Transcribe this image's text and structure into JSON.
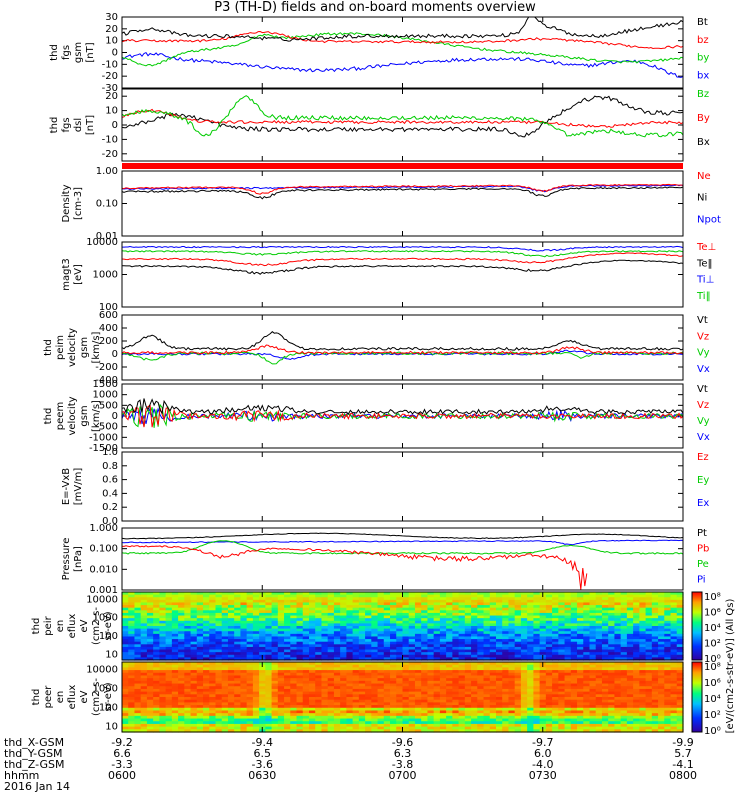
{
  "title": "P3 (TH-D) fields and on-board moments overview",
  "date": "2016 Jan 14",
  "colorbar_label": "[eV/(cm2-s-str-eV)] (All Qs)",
  "colorbar_ticks": [
    "10⁸",
    "10⁶",
    "10⁴",
    "10²",
    "10⁰"
  ],
  "ephemeris": {
    "labels": [
      "thd_X-GSM",
      "thd_Y-GSM",
      "thd_Z-GSM",
      "hhmm"
    ],
    "columns": [
      [
        "-9.2",
        "6.6",
        "-3.3",
        "0600"
      ],
      [
        "-9.4",
        "6.5",
        "-3.6",
        "0630"
      ],
      [
        "-9.6",
        "6.3",
        "-3.8",
        "0700"
      ],
      [
        "-9.7",
        "6.0",
        "-4.0",
        "0730"
      ],
      [
        "-9.9",
        "5.7",
        "-4.1",
        "0800"
      ]
    ]
  },
  "chart_data": [
    {
      "type": "line",
      "ylabel": [
        "thd",
        "fgs",
        "gsm",
        "[nT]"
      ],
      "ylim": [
        -30,
        30
      ],
      "yticks": [
        "30",
        "20",
        "10",
        "0",
        "-10",
        "-20",
        "-30"
      ],
      "series": [
        {
          "name": "Bt",
          "color": "#000000"
        },
        {
          "name": "bz",
          "color": "#ff0000"
        },
        {
          "name": "by",
          "color": "#00cc00"
        },
        {
          "name": "bx",
          "color": "#0000ff"
        }
      ]
    },
    {
      "type": "line",
      "ylabel": [
        "thd",
        "fgs",
        "dsl",
        "[nT]"
      ],
      "ylim": [
        -25,
        25
      ],
      "yticks": [
        "20",
        "10",
        "0",
        "-10",
        "-20"
      ],
      "series": [
        {
          "name": "Bz",
          "color": "#00cc00"
        },
        {
          "name": "By",
          "color": "#ff0000"
        },
        {
          "name": "Bx",
          "color": "#000000"
        }
      ]
    },
    {
      "type": "line",
      "ylabel": [
        "Density",
        "[cm-3]"
      ],
      "ylim": [
        0.01,
        1.0
      ],
      "log": true,
      "yticks": [
        "1.00",
        "0.10",
        "0.01"
      ],
      "series": [
        {
          "name": "Ne",
          "color": "#ff0000"
        },
        {
          "name": "Ni",
          "color": "#000000"
        },
        {
          "name": "Npot",
          "color": "#0000ff"
        }
      ]
    },
    {
      "type": "line",
      "ylabel": [
        "magt3",
        "[eV]"
      ],
      "ylim": [
        100,
        10000
      ],
      "log": true,
      "yticks": [
        "10000",
        "1000",
        "100"
      ],
      "series": [
        {
          "name": "Te⊥",
          "color": "#ff0000"
        },
        {
          "name": "Te‖",
          "color": "#000000"
        },
        {
          "name": "Ti⊥",
          "color": "#0000ff"
        },
        {
          "name": "Ti‖",
          "color": "#00cc00"
        }
      ]
    },
    {
      "type": "line",
      "ylabel": [
        "thd",
        "peim",
        "velocity",
        "gsm",
        "[km/s]"
      ],
      "ylim": [
        -400,
        600
      ],
      "yticks": [
        "600",
        "400",
        "200",
        "0",
        "-200",
        "-400"
      ],
      "series": [
        {
          "name": "Vt",
          "color": "#000000"
        },
        {
          "name": "Vz",
          "color": "#ff0000"
        },
        {
          "name": "Vy",
          "color": "#00cc00"
        },
        {
          "name": "Vx",
          "color": "#0000ff"
        }
      ]
    },
    {
      "type": "line",
      "ylabel": [
        "thd",
        "peem",
        "velocity",
        "gsm",
        "[km/s]"
      ],
      "ylim": [
        -1500,
        1500
      ],
      "yticks": [
        "1500",
        "1000",
        "500",
        "0",
        "-500",
        "-1000",
        "-1500"
      ],
      "series": [
        {
          "name": "Vt",
          "color": "#000000"
        },
        {
          "name": "Vz",
          "color": "#ff0000"
        },
        {
          "name": "Vy",
          "color": "#00cc00"
        },
        {
          "name": "Vx",
          "color": "#0000ff"
        }
      ]
    },
    {
      "type": "line",
      "ylabel": [
        "E=-VxB",
        "[mV/m]"
      ],
      "ylim": [
        0,
        1
      ],
      "yticks": [
        "1.0",
        "0.8",
        "0.6",
        "0.4",
        "0.2",
        "0.0"
      ],
      "series": [
        {
          "name": "Ez",
          "color": "#ff0000"
        },
        {
          "name": "Ey",
          "color": "#00cc00"
        },
        {
          "name": "Ex",
          "color": "#0000ff"
        }
      ]
    },
    {
      "type": "line",
      "ylabel": [
        "Pressure",
        "[nPa]"
      ],
      "ylim": [
        0.001,
        1.0
      ],
      "log": true,
      "yticks": [
        "1.000",
        "0.100",
        "0.010",
        "0.001"
      ],
      "series": [
        {
          "name": "Pt",
          "color": "#000000"
        },
        {
          "name": "Pb",
          "color": "#ff0000"
        },
        {
          "name": "Pe",
          "color": "#00cc00"
        },
        {
          "name": "Pi",
          "color": "#0000ff"
        }
      ]
    },
    {
      "type": "heatmap",
      "ylabel": [
        "thd",
        "peir",
        "en",
        "eflux",
        "eV",
        "(cm2-s-",
        "sr-eV)"
      ],
      "ylim": [
        5,
        25000
      ],
      "log": true,
      "yticks": [
        "10000",
        "1000",
        "100",
        "10"
      ]
    },
    {
      "type": "heatmap",
      "ylabel": [
        "thd",
        "peer",
        "en",
        "eflux",
        "eV",
        "(cm2-s-",
        "sr-eV)"
      ],
      "ylim": [
        5,
        25000
      ],
      "log": true,
      "yticks": [
        "10000",
        "1000",
        "100",
        "10"
      ]
    }
  ]
}
